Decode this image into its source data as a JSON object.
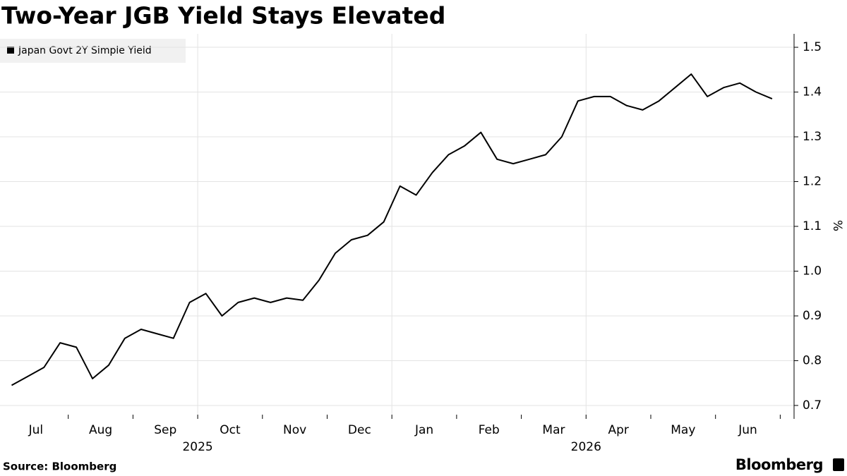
{
  "chart_data": {
    "type": "line",
    "title": "Two-Year JGB Yield Stays Elevated",
    "source": "Source: Bloomberg",
    "brand": "Bloomberg",
    "y_label": "%",
    "months": [
      "Jul",
      "Aug",
      "Sep",
      "Oct",
      "Nov",
      "Dec",
      "Jan",
      "Feb",
      "Mar",
      "Apr",
      "May",
      "Jun"
    ],
    "years": [
      "2025",
      "2026"
    ],
    "x": [
      "2025-07",
      "2025-07",
      "2025-07",
      "2025-07",
      "2025-08",
      "2025-08",
      "2025-08",
      "2025-08",
      "2025-09",
      "2025-09",
      "2025-09",
      "2025-09",
      "2025-10",
      "2025-10",
      "2025-10",
      "2025-10",
      "2025-11",
      "2025-11",
      "2025-11",
      "2025-11",
      "2025-12",
      "2025-12",
      "2025-12",
      "2025-12",
      "2026-01",
      "2026-01",
      "2026-01",
      "2026-01",
      "2026-02",
      "2026-02",
      "2026-02",
      "2026-02",
      "2026-03",
      "2026-03",
      "2026-03",
      "2026-03",
      "2026-04",
      "2026-04",
      "2026-04",
      "2026-04",
      "2026-05",
      "2026-05",
      "2026-05",
      "2026-05",
      "2026-06",
      "2026-06",
      "2026-06",
      "2026-06"
    ],
    "series": [
      {
        "name": "Japan Govt 2Y Simple Yield",
        "color": "#000000",
        "values": [
          0.745,
          0.765,
          0.785,
          0.84,
          0.83,
          0.76,
          0.79,
          0.85,
          0.87,
          0.86,
          0.85,
          0.93,
          0.95,
          0.9,
          0.93,
          0.94,
          0.93,
          0.94,
          0.935,
          0.98,
          1.04,
          1.07,
          1.08,
          1.11,
          1.19,
          1.17,
          1.22,
          1.26,
          1.28,
          1.31,
          1.25,
          1.24,
          1.25,
          1.26,
          1.3,
          1.38,
          1.39,
          1.39,
          1.37,
          1.36,
          1.38,
          1.41,
          1.44,
          1.39,
          1.41,
          1.42,
          1.4,
          1.385
        ]
      }
    ],
    "ylim": [
      0.67,
      1.53
    ],
    "yticks": [
      0.7,
      0.8,
      0.9,
      {
        "value": 1.0,
        "label": "1.0"
      },
      1.1,
      1.2,
      1.3,
      1.4,
      1.5
    ],
    "grid": true
  }
}
